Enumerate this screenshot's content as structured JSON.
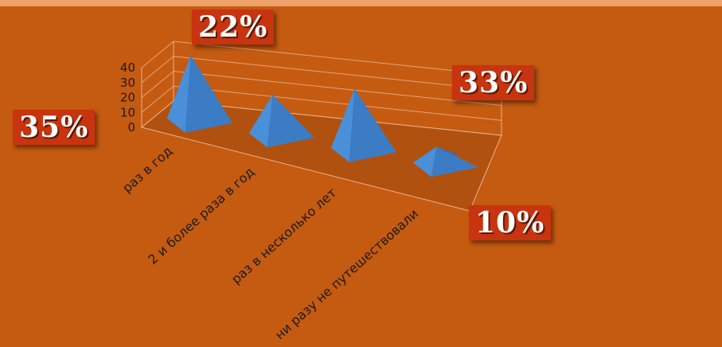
{
  "chart_data": {
    "type": "bar",
    "shape": "3d-pyramid",
    "categories": [
      "раз в год",
      "2 и более раза в год",
      "раз в несколько лет",
      "ни разу не путешествовали"
    ],
    "values": [
      35,
      22,
      33,
      10
    ],
    "percent_labels": [
      "35%",
      "22%",
      "33%",
      "10%"
    ],
    "yticks": [
      "0",
      "10",
      "20",
      "30",
      "40"
    ],
    "ylim": [
      0,
      40
    ],
    "title": "",
    "xlabel": "",
    "ylabel": "",
    "grid": true,
    "colors": {
      "background": "#C55A11",
      "pyramid": "#4A90D9",
      "label_box": "#C8340F",
      "label_text": "#FFFFFF"
    }
  }
}
